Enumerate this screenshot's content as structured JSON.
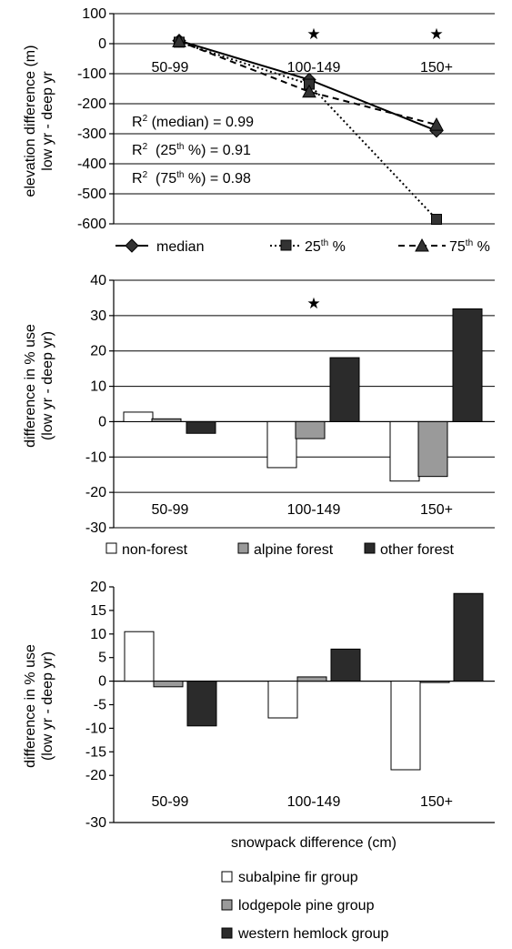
{
  "chart_data": [
    {
      "type": "line",
      "ylabel_line1": "elevation difference (m)",
      "ylabel_line2": "low yr - deep yr",
      "categories": [
        "50-99",
        "100-149",
        "150+"
      ],
      "ylim": [
        -600,
        100
      ],
      "yticks": [
        "100",
        "0",
        "-100",
        "-200",
        "-300",
        "-400",
        "-500",
        "-600"
      ],
      "grid": true,
      "significance_marks": [
        false,
        true,
        true
      ],
      "series": [
        {
          "name": "median",
          "marker": "diamond",
          "dash": "solid",
          "values": [
            10,
            -120,
            -290
          ]
        },
        {
          "name": "25th %",
          "marker": "square",
          "dash": "dotted",
          "values": [
            5,
            -135,
            -585
          ]
        },
        {
          "name": "75th %",
          "marker": "triangle",
          "dash": "dashed",
          "values": [
            8,
            -160,
            -270
          ]
        }
      ],
      "annotations": [
        {
          "label": "R2 (median) = 0.99"
        },
        {
          "label": "R2  (25th %) = 0.91"
        },
        {
          "label": "R2  (75th %) = 0.98"
        }
      ],
      "legend_placement": "bottom"
    },
    {
      "type": "bar",
      "ylabel_line1": "difference in % use",
      "ylabel_line2": "(low yr - deep yr)",
      "categories": [
        "50-99",
        "100-149",
        "150+"
      ],
      "ylim": [
        -30,
        40
      ],
      "yticks": [
        "40",
        "30",
        "20",
        "10",
        "0",
        "-10",
        "-20",
        "-30"
      ],
      "grid": true,
      "significance_marks": [
        false,
        true,
        false
      ],
      "series": [
        {
          "name": "non-forest",
          "color": "#ffffff",
          "values": [
            2.7,
            -13,
            -16.8
          ]
        },
        {
          "name": "alpine forest",
          "color": "#9a9a9a",
          "values": [
            0.8,
            -4.8,
            -15.5
          ]
        },
        {
          "name": "other forest",
          "color": "#2b2b2b",
          "values": [
            -3.3,
            18.1,
            31.9
          ]
        }
      ],
      "legend_placement": "bottom"
    },
    {
      "type": "bar",
      "ylabel_line1": "difference in % use",
      "ylabel_line2": "(low yr - deep yr)",
      "xlabel": "snowpack difference (cm)",
      "categories": [
        "50-99",
        "100-149",
        "150+"
      ],
      "ylim": [
        -30,
        20
      ],
      "yticks": [
        "20",
        "15",
        "10",
        "5",
        "0",
        "-5",
        "-10",
        "-15",
        "-20",
        "-30"
      ],
      "ytick_values": [
        20,
        15,
        10,
        5,
        0,
        -5,
        -10,
        -15,
        -20,
        -30
      ],
      "grid": false,
      "series": [
        {
          "name": "subalpine fir group",
          "color": "#ffffff",
          "values": [
            10.5,
            -7.8,
            -18.8
          ]
        },
        {
          "name": "lodgepole pine group",
          "color": "#9a9a9a",
          "values": [
            -1.2,
            0.9,
            0
          ]
        },
        {
          "name": "western hemlock group",
          "color": "#2b2b2b",
          "values": [
            -9.5,
            6.8,
            18.6
          ]
        }
      ],
      "legend_placement": "bottom"
    }
  ],
  "text": {
    "r2_prefix": "R",
    "r2_sup": "2",
    "ann1_rest": " (median) = 0.99",
    "ann2_mid": "  (25",
    "ann2_sup": "th",
    "ann2_rest": " %) = 0.91",
    "ann3_mid": "  (75",
    "ann3_sup": "th",
    "ann3_rest": " %) = 0.98",
    "leg_median": "median",
    "leg_25_base": "25",
    "leg_25_sup": "th",
    "leg_25_rest": " %",
    "leg_75_base": "75",
    "leg_75_sup": "th",
    "leg_75_rest": " %",
    "star": "★"
  }
}
